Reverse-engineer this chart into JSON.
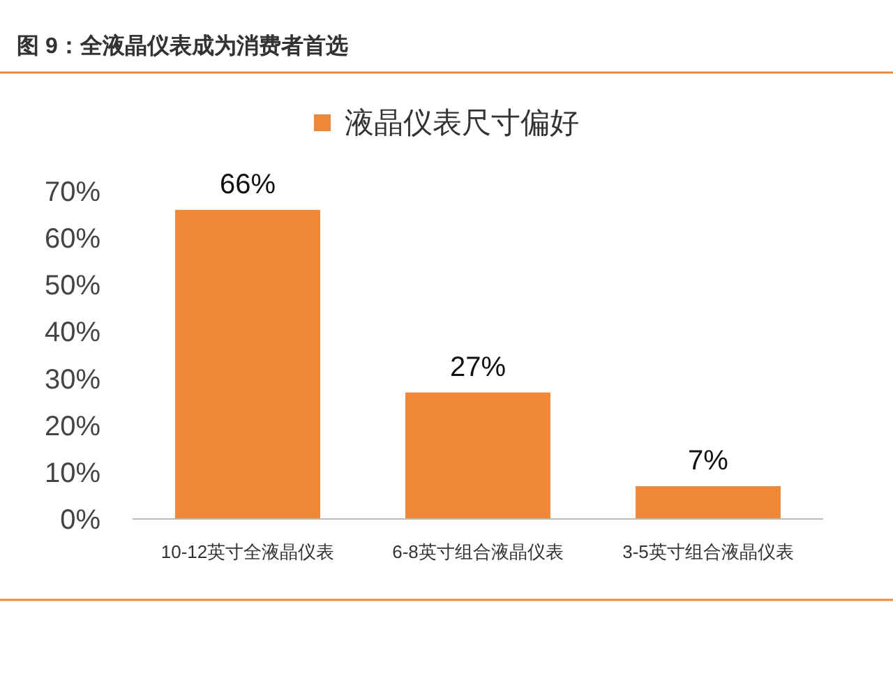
{
  "chart_data": {
    "type": "bar",
    "title": "图 9：全液晶仪表成为消费者首选",
    "categories": [
      "10-12英寸全液晶仪表",
      "6-8英寸组合液晶仪表",
      "3-5英寸组合液晶仪表"
    ],
    "series": [
      {
        "name": "液晶仪表尺寸偏好",
        "color": "#f0883a",
        "values": [
          66,
          27,
          7
        ]
      }
    ],
    "value_labels": [
      "66%",
      "27%",
      "7%"
    ],
    "ylim": [
      0,
      70
    ],
    "yticks": [
      {
        "value": 0,
        "label": "0%"
      },
      {
        "value": 10,
        "label": "10%"
      },
      {
        "value": 20,
        "label": "20%"
      },
      {
        "value": 30,
        "label": "30%"
      },
      {
        "value": 40,
        "label": "40%"
      },
      {
        "value": 50,
        "label": "50%"
      },
      {
        "value": 60,
        "label": "60%"
      },
      {
        "value": 70,
        "label": "70%"
      }
    ],
    "legend": "top",
    "grid": false
  }
}
